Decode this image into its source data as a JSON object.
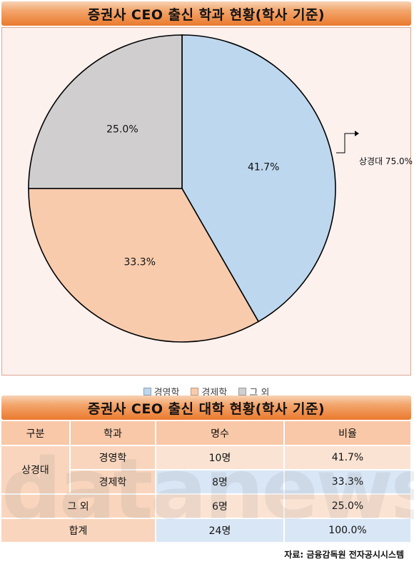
{
  "banner1": {
    "title": "증권사 CEO 출신 학과 현황(학사 기준)"
  },
  "banner2": {
    "title": "증권사 CEO 출신 대학 현황(학사 기준)"
  },
  "chart_data": {
    "type": "pie",
    "title": "증권사 CEO 출신 학과 현황(학사 기준)",
    "categories": [
      "경영학",
      "경제학",
      "그 외"
    ],
    "values": [
      41.7,
      33.3,
      25.0
    ],
    "data_labels": [
      "41.7%",
      "33.3%",
      "25.0%"
    ],
    "colors": [
      "#bdd7ee",
      "#f8cbad",
      "#d0cece"
    ],
    "legend_position": "bottom",
    "annotation": "상경대 75.0%"
  },
  "table": {
    "headers": [
      "구분",
      "학과",
      "명수",
      "비율"
    ],
    "group_label": "상경대",
    "rows": [
      {
        "dept": "경영학",
        "count": "10명",
        "ratio": "41.7%"
      },
      {
        "dept": "경제학",
        "count": "8명",
        "ratio": "33.3%"
      },
      {
        "dept": "그 외",
        "count": "6명",
        "ratio": "25.0%"
      },
      {
        "dept": "합계",
        "count": "24명",
        "ratio": "100.0%"
      }
    ]
  },
  "watermark": {
    "text": "datanews"
  },
  "source": {
    "text": "자료: 금융감독원 전자공시시스템"
  },
  "colors": {
    "accent": "#ea7a2e",
    "header_peach": "#f8c8a8",
    "chart_bg": "#fdf1ee"
  }
}
